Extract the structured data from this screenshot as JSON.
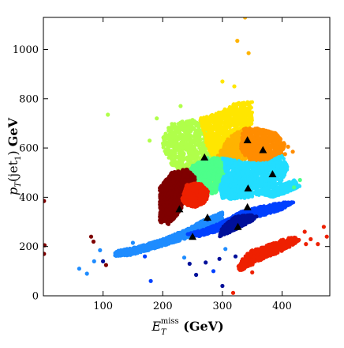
{
  "chart_data": {
    "type": "scatter",
    "title": "",
    "xlabel": "E_T^miss (GeV)",
    "ylabel": "p_T(jet_1) GeV",
    "xlim": [
      0,
      480
    ],
    "ylim": [
      0,
      1130
    ],
    "grid": false,
    "legend": "none",
    "x_ticks": [
      "100",
      "200",
      "300",
      "400"
    ],
    "x_tick_values": [
      100,
      200,
      300,
      400
    ],
    "y_ticks": [
      "0",
      "200",
      "400",
      "600",
      "800",
      "1000"
    ],
    "y_tick_values": [
      0,
      200,
      400,
      600,
      800,
      1000
    ],
    "cluster_colors": {
      "dark_red": "#7f0000",
      "red": "#ee2000",
      "orange": "#ff8c00",
      "amber": "#ffb300",
      "yellow": "#ffe600",
      "yellow_green": "#b0ff4a",
      "green": "#4dff8a",
      "cyan": "#22ddff",
      "light_blue": "#1e8cff",
      "blue": "#0040ff",
      "navy": "#00109a",
      "marker": "#000000"
    },
    "regions": [
      {
        "name": "yellow-green",
        "color": "yellow_green",
        "n": 900,
        "poly": [
          [
            200,
            650
          ],
          [
            215,
            700
          ],
          [
            240,
            710
          ],
          [
            262,
            720
          ],
          [
            280,
            690
          ],
          [
            290,
            560
          ],
          [
            292,
            480
          ],
          [
            270,
            430
          ],
          [
            250,
            430
          ],
          [
            235,
            470
          ],
          [
            215,
            530
          ],
          [
            200,
            600
          ]
        ]
      },
      {
        "name": "yellow",
        "color": "yellow",
        "n": 900,
        "poly": [
          [
            262,
            720
          ],
          [
            290,
            740
          ],
          [
            320,
            780
          ],
          [
            350,
            790
          ],
          [
            350,
            700
          ],
          [
            340,
            650
          ],
          [
            300,
            560
          ],
          [
            290,
            540
          ],
          [
            275,
            600
          ]
        ]
      },
      {
        "name": "amber",
        "color": "amber",
        "n": 500,
        "poly": [
          [
            290,
            560
          ],
          [
            310,
            640
          ],
          [
            335,
            680
          ],
          [
            350,
            640
          ],
          [
            345,
            560
          ],
          [
            310,
            520
          ]
        ]
      },
      {
        "name": "orange",
        "color": "orange",
        "n": 700,
        "poly": [
          [
            335,
            680
          ],
          [
            360,
            680
          ],
          [
            390,
            660
          ],
          [
            405,
            620
          ],
          [
            400,
            570
          ],
          [
            375,
            540
          ],
          [
            345,
            540
          ],
          [
            330,
            600
          ]
        ]
      },
      {
        "name": "green",
        "color": "green",
        "n": 700,
        "poly": [
          [
            235,
            470
          ],
          [
            250,
            530
          ],
          [
            275,
            560
          ],
          [
            300,
            560
          ],
          [
            310,
            520
          ],
          [
            300,
            470
          ],
          [
            290,
            420
          ],
          [
            265,
            400
          ],
          [
            245,
            420
          ]
        ]
      },
      {
        "name": "cyan",
        "color": "cyan",
        "n": 1200,
        "poly": [
          [
            300,
            560
          ],
          [
            345,
            540
          ],
          [
            375,
            540
          ],
          [
            400,
            570
          ],
          [
            410,
            520
          ],
          [
            400,
            460
          ],
          [
            380,
            430
          ],
          [
            365,
            410
          ],
          [
            350,
            400
          ],
          [
            320,
            390
          ],
          [
            300,
            395
          ],
          [
            295,
            440
          ],
          [
            305,
            500
          ]
        ]
      },
      {
        "name": "cyan-tail",
        "color": "cyan",
        "n": 300,
        "poly": [
          [
            370,
            410
          ],
          [
            400,
            450
          ],
          [
            420,
            470
          ],
          [
            430,
            445
          ],
          [
            410,
            420
          ],
          [
            385,
            400
          ]
        ]
      },
      {
        "name": "dark-red",
        "color": "dark_red",
        "n": 1200,
        "poly": [
          [
            195,
            300
          ],
          [
            195,
            440
          ],
          [
            215,
            500
          ],
          [
            240,
            515
          ],
          [
            255,
            480
          ],
          [
            250,
            420
          ],
          [
            235,
            370
          ],
          [
            225,
            330
          ],
          [
            210,
            290
          ]
        ]
      },
      {
        "name": "red",
        "color": "red",
        "n": 500,
        "poly": [
          [
            232,
            390
          ],
          [
            240,
            450
          ],
          [
            262,
            460
          ],
          [
            278,
            420
          ],
          [
            272,
            380
          ],
          [
            255,
            360
          ],
          [
            240,
            365
          ]
        ]
      },
      {
        "name": "light-blue-band",
        "color": "light_blue",
        "n": 1300,
        "poly": [
          [
            120,
            180
          ],
          [
            160,
            200
          ],
          [
            200,
            230
          ],
          [
            240,
            270
          ],
          [
            270,
            310
          ],
          [
            290,
            330
          ],
          [
            300,
            340
          ],
          [
            300,
            300
          ],
          [
            270,
            260
          ],
          [
            230,
            225
          ],
          [
            190,
            195
          ],
          [
            150,
            165
          ],
          [
            120,
            160
          ]
        ]
      },
      {
        "name": "blue-band",
        "color": "blue",
        "n": 900,
        "poly": [
          [
            240,
            250
          ],
          [
            270,
            270
          ],
          [
            300,
            300
          ],
          [
            330,
            340
          ],
          [
            360,
            360
          ],
          [
            400,
            380
          ],
          [
            420,
            380
          ],
          [
            400,
            350
          ],
          [
            360,
            320
          ],
          [
            320,
            290
          ],
          [
            290,
            260
          ],
          [
            260,
            240
          ]
        ]
      },
      {
        "name": "navy",
        "color": "navy",
        "n": 450,
        "poly": [
          [
            295,
            240
          ],
          [
            300,
            280
          ],
          [
            320,
            320
          ],
          [
            345,
            330
          ],
          [
            360,
            320
          ],
          [
            340,
            290
          ],
          [
            315,
            260
          ]
        ]
      },
      {
        "name": "red-island",
        "color": "red",
        "n": 450,
        "poly": [
          [
            330,
            130
          ],
          [
            335,
            160
          ],
          [
            345,
            180
          ],
          [
            370,
            200
          ],
          [
            395,
            225
          ],
          [
            420,
            240
          ],
          [
            430,
            225
          ],
          [
            415,
            200
          ],
          [
            395,
            175
          ],
          [
            370,
            150
          ],
          [
            345,
            120
          ],
          [
            330,
            100
          ],
          [
            325,
            115
          ]
        ]
      }
    ],
    "outliers": [
      {
        "x": 1,
        "y": 385,
        "color": "dark_red"
      },
      {
        "x": 2,
        "y": 205,
        "color": "dark_red"
      },
      {
        "x": 1,
        "y": 170,
        "color": "dark_red"
      },
      {
        "x": 108,
        "y": 735,
        "color": "yellow_green"
      },
      {
        "x": 338,
        "y": 1130,
        "color": "amber"
      },
      {
        "x": 325,
        "y": 1035,
        "color": "amber"
      },
      {
        "x": 344,
        "y": 985,
        "color": "amber"
      },
      {
        "x": 300,
        "y": 870,
        "color": "yellow"
      },
      {
        "x": 320,
        "y": 850,
        "color": "yellow"
      },
      {
        "x": 230,
        "y": 770,
        "color": "yellow_green"
      },
      {
        "x": 190,
        "y": 720,
        "color": "yellow_green"
      },
      {
        "x": 178,
        "y": 630,
        "color": "yellow_green"
      },
      {
        "x": 80,
        "y": 240,
        "color": "dark_red"
      },
      {
        "x": 84,
        "y": 220,
        "color": "dark_red"
      },
      {
        "x": 60,
        "y": 110,
        "color": "light_blue"
      },
      {
        "x": 73,
        "y": 90,
        "color": "light_blue"
      },
      {
        "x": 85,
        "y": 140,
        "color": "light_blue"
      },
      {
        "x": 95,
        "y": 185,
        "color": "light_blue"
      },
      {
        "x": 100,
        "y": 140,
        "color": "navy"
      },
      {
        "x": 105,
        "y": 125,
        "color": "dark_red"
      },
      {
        "x": 170,
        "y": 160,
        "color": "blue"
      },
      {
        "x": 180,
        "y": 60,
        "color": "blue"
      },
      {
        "x": 236,
        "y": 155,
        "color": "light_blue"
      },
      {
        "x": 245,
        "y": 130,
        "color": "navy"
      },
      {
        "x": 256,
        "y": 85,
        "color": "navy"
      },
      {
        "x": 272,
        "y": 135,
        "color": "navy"
      },
      {
        "x": 285,
        "y": 100,
        "color": "blue"
      },
      {
        "x": 295,
        "y": 150,
        "color": "navy"
      },
      {
        "x": 300,
        "y": 40,
        "color": "navy"
      },
      {
        "x": 318,
        "y": 12,
        "color": "red"
      },
      {
        "x": 322,
        "y": 160,
        "color": "navy"
      },
      {
        "x": 305,
        "y": 190,
        "color": "light_blue"
      },
      {
        "x": 350,
        "y": 95,
        "color": "red"
      },
      {
        "x": 438,
        "y": 260,
        "color": "red"
      },
      {
        "x": 448,
        "y": 230,
        "color": "red"
      },
      {
        "x": 460,
        "y": 210,
        "color": "red"
      },
      {
        "x": 470,
        "y": 280,
        "color": "red"
      },
      {
        "x": 475,
        "y": 240,
        "color": "red"
      },
      {
        "x": 405,
        "y": 575,
        "color": "orange"
      },
      {
        "x": 410,
        "y": 605,
        "color": "orange"
      },
      {
        "x": 418,
        "y": 585,
        "color": "orange"
      },
      {
        "x": 430,
        "y": 470,
        "color": "green"
      },
      {
        "x": 420,
        "y": 440,
        "color": "green"
      },
      {
        "x": 275,
        "y": 310,
        "color": "navy"
      },
      {
        "x": 440,
        "y": 210,
        "color": "red"
      },
      {
        "x": 150,
        "y": 215,
        "color": "light_blue"
      }
    ],
    "markers": [
      {
        "x": 228,
        "y": 352
      },
      {
        "x": 250,
        "y": 240
      },
      {
        "x": 270,
        "y": 562
      },
      {
        "x": 275,
        "y": 318
      },
      {
        "x": 326,
        "y": 280
      },
      {
        "x": 342,
        "y": 632
      },
      {
        "x": 343,
        "y": 436
      },
      {
        "x": 342,
        "y": 360
      },
      {
        "x": 368,
        "y": 592
      },
      {
        "x": 384,
        "y": 494
      }
    ]
  }
}
